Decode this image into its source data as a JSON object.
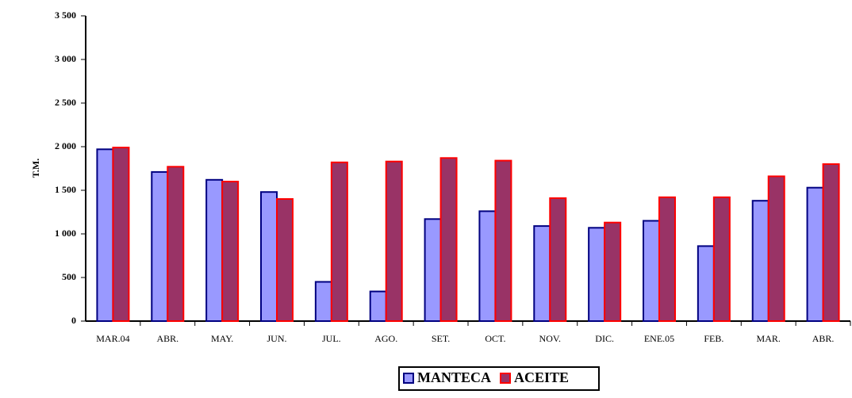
{
  "chart_data": {
    "type": "bar",
    "y_label": "T.M.",
    "categories": [
      "MAR.04",
      "ABR.",
      "MAY.",
      "JUN.",
      "JUL.",
      "AGO.",
      "SET.",
      "OCT.",
      "NOV.",
      "DIC.",
      "ENE.05",
      "FEB.",
      "MAR.",
      "ABR."
    ],
    "series": [
      {
        "name": "MANTECA",
        "color": "#9999ff",
        "edge": "#000080",
        "values": [
          1970,
          1710,
          1620,
          1480,
          450,
          340,
          1170,
          1260,
          1090,
          1070,
          1150,
          860,
          1380,
          1530
        ]
      },
      {
        "name": "ACEITE",
        "color": "#993366",
        "edge": "#ff0000",
        "values": [
          1990,
          1770,
          1600,
          1400,
          1820,
          1830,
          1870,
          1840,
          1410,
          1130,
          1420,
          1420,
          1660,
          1800
        ]
      }
    ],
    "ylim": [
      0,
      3500
    ],
    "yticks": [
      0,
      {
        "value": 500,
        "label": "500"
      },
      {
        "value": 1000,
        "label": "1 000"
      },
      {
        "value": 1500,
        "label": "1 500"
      },
      {
        "value": 2000,
        "label": "2 000"
      },
      {
        "value": 2500,
        "label": "2 500"
      },
      {
        "value": 3000,
        "label": "3 000"
      },
      {
        "value": 3500,
        "label": "3 500"
      }
    ],
    "legend": "bottom"
  }
}
